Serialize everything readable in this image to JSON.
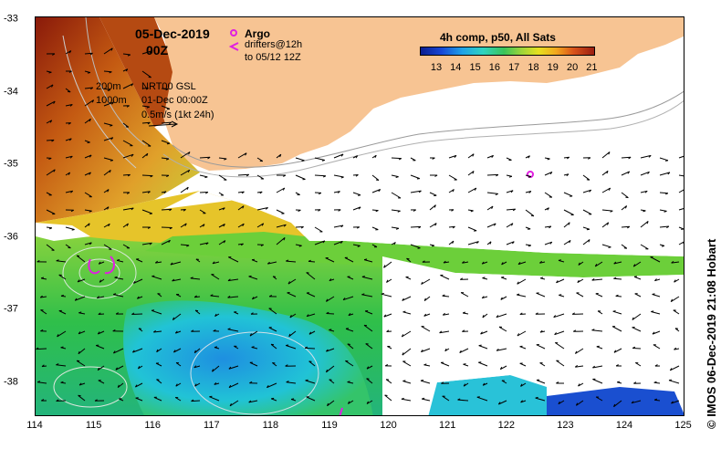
{
  "title": {
    "date": "05-Dec-2019",
    "time": "00Z"
  },
  "legend": {
    "argo_label": "Argo",
    "drifter_line1": "drifters@12h",
    "drifter_line2": "to 05/12 12Z",
    "argo_color": "#e020e0"
  },
  "info": {
    "depth_200": "200m",
    "depth_1000": "1000m",
    "product": "NRT00 GSL",
    "product_time": "01-Dec 00:00Z",
    "scale": "0.5m/s (1kt 24h)"
  },
  "colorbar": {
    "title": "4h comp, p50, All Sats",
    "ticks": [
      "13",
      "14",
      "15",
      "16",
      "17",
      "18",
      "19",
      "20",
      "21"
    ]
  },
  "axes": {
    "x_ticks": [
      "114",
      "115",
      "116",
      "117",
      "118",
      "119",
      "120",
      "121",
      "122",
      "123",
      "124",
      "125"
    ],
    "y_ticks": [
      "-33",
      "-34",
      "-35",
      "-36",
      "-37",
      "-38"
    ]
  },
  "credit": "© IMOS 06-Dec-2019 21:08 Hobart",
  "colors": {
    "land": "#f7c493",
    "cloud": "#ffffff",
    "warm": "#c85a10",
    "cool": "#1fb4e0",
    "green": "#3cc04a"
  }
}
